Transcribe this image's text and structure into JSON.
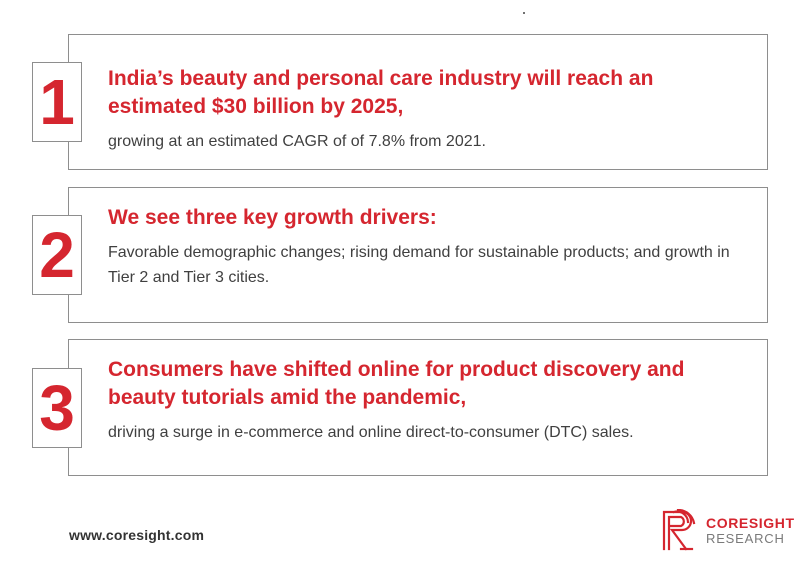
{
  "cards": [
    {
      "number": "1",
      "headline": "India’s beauty and personal care industry will reach an estimated $30 billion by 2025,",
      "body": "growing at an estimated CAGR of of 7.8% from 2021."
    },
    {
      "number": "2",
      "headline": "We see three key growth drivers:",
      "body": "Favorable demographic changes; rising demand for sustainable products; and growth in Tier 2 and Tier 3 cities."
    },
    {
      "number": "3",
      "headline": "Consumers have shifted online for product discovery and beauty tutorials amid the pandemic,",
      "body": "driving a surge in e-commerce and online direct-to-consumer (DTC) sales."
    }
  ],
  "footer": {
    "url": "www.coresight.com",
    "logo_name": "CORESIGHT",
    "logo_sub": "RESEARCH"
  },
  "colors": {
    "accent": "#d5262f",
    "body_text": "#404040",
    "border": "#8e8e8e"
  }
}
